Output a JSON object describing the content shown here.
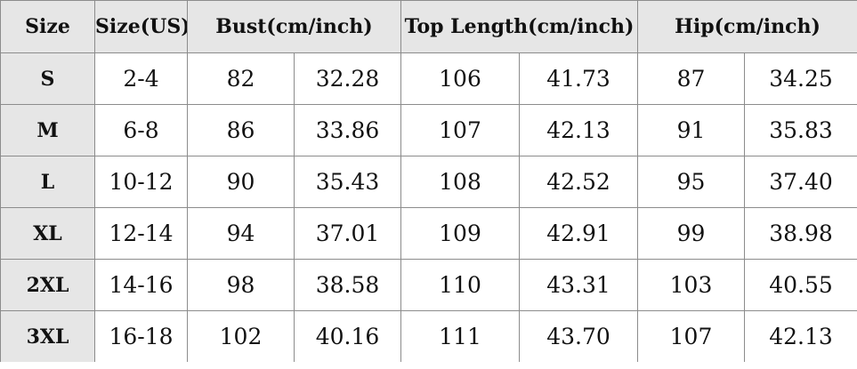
{
  "table": {
    "headers": {
      "size": "Size",
      "size_us": "Size(US)",
      "bust": "Bust(cm/inch)",
      "top_length": "Top Length(cm/inch)",
      "hip": "Hip(cm/inch)"
    },
    "rows": [
      {
        "size": "S",
        "us": "2-4",
        "bust_cm": "82",
        "bust_in": "32.28",
        "len_cm": "106",
        "len_in": "41.73",
        "hip_cm": "87",
        "hip_in": "34.25"
      },
      {
        "size": "M",
        "us": "6-8",
        "bust_cm": "86",
        "bust_in": "33.86",
        "len_cm": "107",
        "len_in": "42.13",
        "hip_cm": "91",
        "hip_in": "35.83"
      },
      {
        "size": "L",
        "us": "10-12",
        "bust_cm": "90",
        "bust_in": "35.43",
        "len_cm": "108",
        "len_in": "42.52",
        "hip_cm": "95",
        "hip_in": "37.40"
      },
      {
        "size": "XL",
        "us": "12-14",
        "bust_cm": "94",
        "bust_in": "37.01",
        "len_cm": "109",
        "len_in": "42.91",
        "hip_cm": "99",
        "hip_in": "38.98"
      },
      {
        "size": "2XL",
        "us": "14-16",
        "bust_cm": "98",
        "bust_in": "38.58",
        "len_cm": "110",
        "len_in": "43.31",
        "hip_cm": "103",
        "hip_in": "40.55"
      },
      {
        "size": "3XL",
        "us": "16-18",
        "bust_cm": "102",
        "bust_in": "40.16",
        "len_cm": "111",
        "len_in": "43.70",
        "hip_cm": "107",
        "hip_in": "42.13"
      }
    ]
  },
  "colors": {
    "header_bg": "#e6e6e6",
    "grid_line": "#8c8c8c",
    "text": "#111111"
  }
}
